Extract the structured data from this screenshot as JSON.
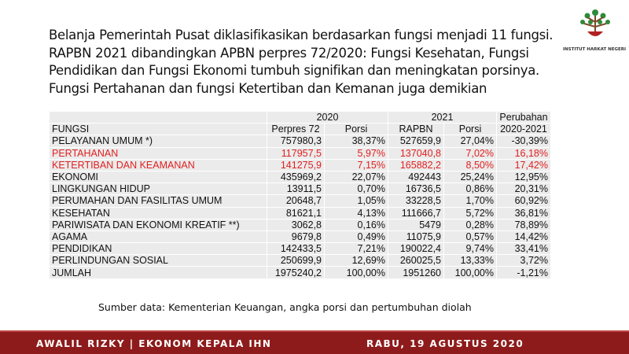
{
  "header": {
    "paragraph": [
      "Belanja Pemerintah Pusat diklasifikasikan berdasarkan fungsi menjadi 11 fungsi.",
      "RAPBN 2021 dibandingkan APBN perpres 72/2020: Fungsi Kesehatan, Fungsi",
      "Pendidikan dan Fungsi Ekonomi tumbuh signifikan dan meningkatan porsinya.",
      "Fungsi Pertahanan dan fungsi Ketertiban dan Kemanan juga demikian"
    ],
    "logo_text": "INSTITUT HARKAT NEGERI"
  },
  "table": {
    "group_header": [
      "2020",
      "2021",
      "Perubahan"
    ],
    "columns": [
      "FUNGSI",
      "Perpres 72",
      "Porsi",
      "RAPBN",
      "Porsi",
      "2020-2021"
    ],
    "rows": [
      [
        "PELAYANAN UMUM *)",
        "757980,3",
        "38,37%",
        "527659,9",
        "27,04%",
        "-30,39%"
      ],
      [
        "PERTAHANAN",
        "117957,5",
        "5,97%",
        "137040,8",
        "7,02%",
        "16,18%"
      ],
      [
        "KETERTIBAN  DAN KEAMANAN",
        "141275,9",
        "7,15%",
        "165882,2",
        "8,50%",
        "17,42%"
      ],
      [
        "EKONOMI",
        "435969,2",
        "22,07%",
        "492443",
        "25,24%",
        "12,95%"
      ],
      [
        "LINGKUNGAN  HIDUP",
        "13911,5",
        "0,70%",
        "16736,5",
        "0,86%",
        "20,31%"
      ],
      [
        "PERUMAHAN  DAN FASILITAS  UMUM",
        "20648,7",
        "1,05%",
        "33228,5",
        "1,70%",
        "60,92%"
      ],
      [
        "KESEHATAN",
        "81621,1",
        "4,13%",
        "111666,7",
        "5,72%",
        "36,81%"
      ],
      [
        "PARIWISATA  DAN EKONOMI  KREATIF  **)",
        "3062,8",
        "0,16%",
        "5479",
        "0,28%",
        "78,89%"
      ],
      [
        "AGAMA",
        "9679,8",
        "0,49%",
        "11075,9",
        "0,57%",
        "14,42%"
      ],
      [
        "PENDIDIKAN",
        "142433,5",
        "7,21%",
        "190022,4",
        "9,74%",
        "33,41%"
      ],
      [
        "PERLINDUNGAN  SOSIAL",
        "250699,9",
        "12,69%",
        "260025,5",
        "13,33%",
        "3,72%"
      ],
      [
        "JUMLAH",
        "1975240,2",
        "100,00%",
        "1951260",
        "100,00%",
        "-1,21%"
      ]
    ],
    "highlight_rows": [
      1,
      2
    ],
    "highlight_color": "#e02020"
  },
  "source": "Sumber data: Kementerian Keuangan, angka porsi dan pertumbuhan diolah",
  "footer": {
    "left": "AWALIL RIZKY | EKONOM KEPALA IHN",
    "right": "RABU, 19 AGUSTUS 2020"
  }
}
